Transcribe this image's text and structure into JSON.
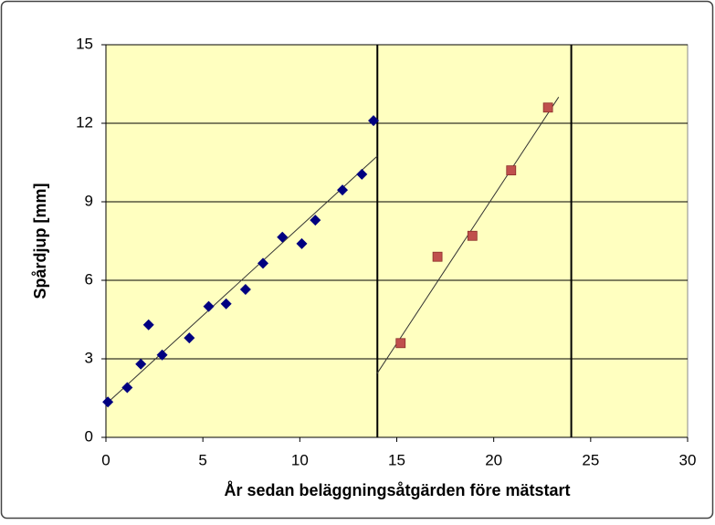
{
  "chart_data": {
    "type": "scatter",
    "x_label": "År sedan beläggningsåtgärden före mätstart",
    "y_label": "Spårdjup [mm]",
    "xlim": [
      0,
      30
    ],
    "xticks": [
      0,
      5,
      10,
      15,
      20,
      25,
      30
    ],
    "ylim": [
      0,
      15
    ],
    "yticks": [
      0,
      3,
      6,
      9,
      12,
      15
    ],
    "grid": true,
    "vlines": [
      14,
      24
    ],
    "series": [
      {
        "color": "#000080",
        "marker": "diamond",
        "x": [
          0.1,
          1.1,
          1.8,
          2.2,
          2.9,
          4.3,
          5.3,
          6.2,
          7.2,
          8.1,
          9.1,
          10.1,
          10.8,
          12.2,
          13.2,
          13.8
        ],
        "values": [
          1.35,
          1.9,
          2.8,
          4.3,
          3.15,
          3.8,
          5.0,
          5.1,
          5.65,
          6.65,
          7.65,
          7.4,
          8.3,
          9.45,
          10.05,
          12.1
        ],
        "trendline": {
          "x": [
            0.05,
            14
          ],
          "y": [
            1.3,
            10.75
          ]
        }
      },
      {
        "color": "#c0504d",
        "marker": "square",
        "x": [
          15.2,
          17.1,
          18.9,
          20.9,
          22.8
        ],
        "values": [
          3.6,
          6.9,
          7.7,
          10.2,
          12.6
        ],
        "trendline": {
          "x": [
            13.95,
            23.35
          ],
          "y": [
            2.4,
            13.0
          ]
        }
      }
    ]
  }
}
